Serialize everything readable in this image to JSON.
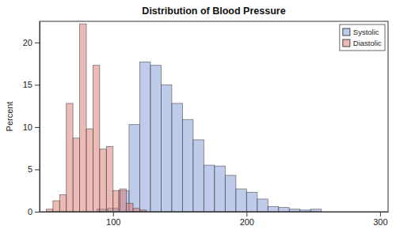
{
  "chart_data": {
    "type": "histogram",
    "title": "Distribution of Blood Pressure",
    "y_label": "Percent",
    "series": [
      {
        "name": "Systolic",
        "color": "#7f97d6",
        "bins": [
          88,
          96,
          104,
          112,
          120,
          128,
          136,
          144,
          152,
          160,
          168,
          176,
          184,
          192,
          200,
          208,
          216,
          224,
          232,
          240,
          248,
          256
        ],
        "values": [
          0.3,
          0.4,
          2.5,
          10.3,
          17.7,
          17.3,
          15.0,
          12.8,
          10.9,
          8.5,
          5.5,
          5.4,
          4.3,
          2.7,
          2.3,
          1.5,
          0.6,
          0.5,
          0.3,
          0.2,
          0.3
        ]
      },
      {
        "name": "Diastolic",
        "color": "#d9776b",
        "bins": [
          50,
          55,
          60,
          65,
          70,
          75,
          80,
          85,
          90,
          95,
          100,
          105,
          110,
          115,
          120,
          125
        ],
        "values": [
          0.3,
          1.3,
          2.0,
          12.8,
          8.7,
          22.2,
          9.8,
          17.3,
          7.4,
          7.7,
          2.5,
          2.7,
          1.0,
          0.4,
          0.2
        ]
      }
    ],
    "xlim": [
      45,
      306
    ],
    "xticks": [
      100,
      200,
      300
    ],
    "ylim": [
      0,
      22.5
    ],
    "yticks": [
      0,
      5,
      10,
      15,
      20
    ],
    "legend": "top-right",
    "grid": false
  }
}
